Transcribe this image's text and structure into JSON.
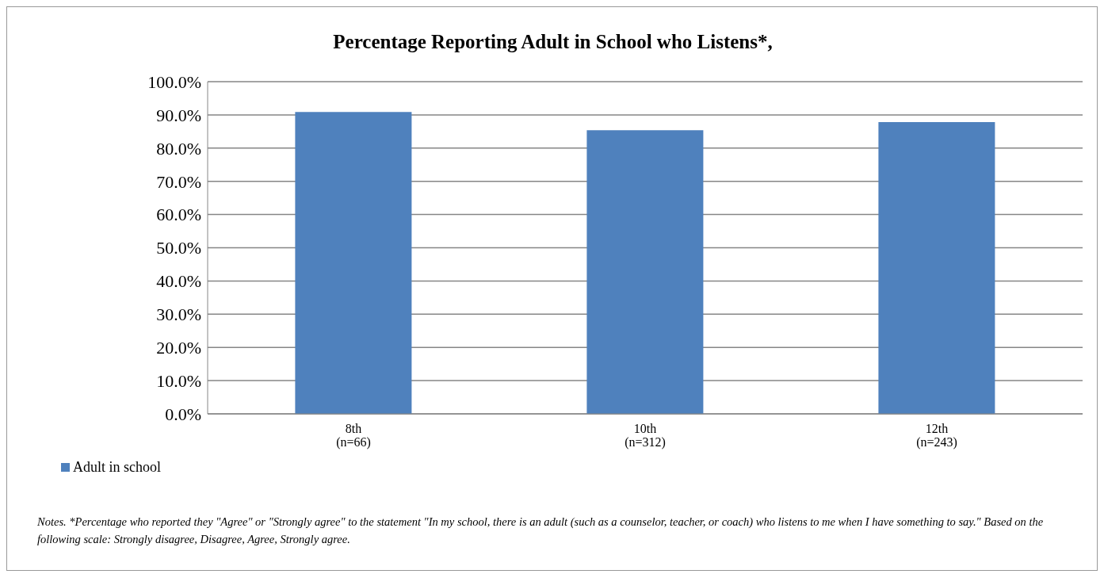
{
  "chart_data": {
    "type": "bar",
    "title": "Percentage Reporting Adult in School who Listens*,",
    "categories": [
      "8th\n(n=66)",
      "10th\n(n=312)",
      "12th\n(n=243)"
    ],
    "series": [
      {
        "name": "Adult in school",
        "color": "#4f81bd",
        "values": [
          90.9,
          85.4,
          87.8
        ]
      }
    ],
    "ylim": [
      0,
      100
    ],
    "yticks": [
      {
        "value": 0,
        "label": "0.0%"
      },
      {
        "value": 10,
        "label": "10.0%"
      },
      {
        "value": 20,
        "label": "20.0%"
      },
      {
        "value": 30,
        "label": "30.0%"
      },
      {
        "value": 40,
        "label": "40.0%"
      },
      {
        "value": 50,
        "label": "50.0%"
      },
      {
        "value": 60,
        "label": "60.0%"
      },
      {
        "value": 70,
        "label": "70.0%"
      },
      {
        "value": 80,
        "label": "80.0%"
      },
      {
        "value": 90,
        "label": "90.0%"
      },
      {
        "value": 100,
        "label": "100.0%"
      }
    ],
    "grid": "y",
    "legend": "bottom left",
    "annotations": [
      "Notes. *Percentage who reported they \"Agree\" or \"Strongly agree\" to the statement \"In my school, there is an adult (such as a counselor, teacher, or coach) who listens to me when I have  something to say.\" Based on the following scale: Strongly disagree, Disagree, Agree, Strongly agree."
    ]
  }
}
